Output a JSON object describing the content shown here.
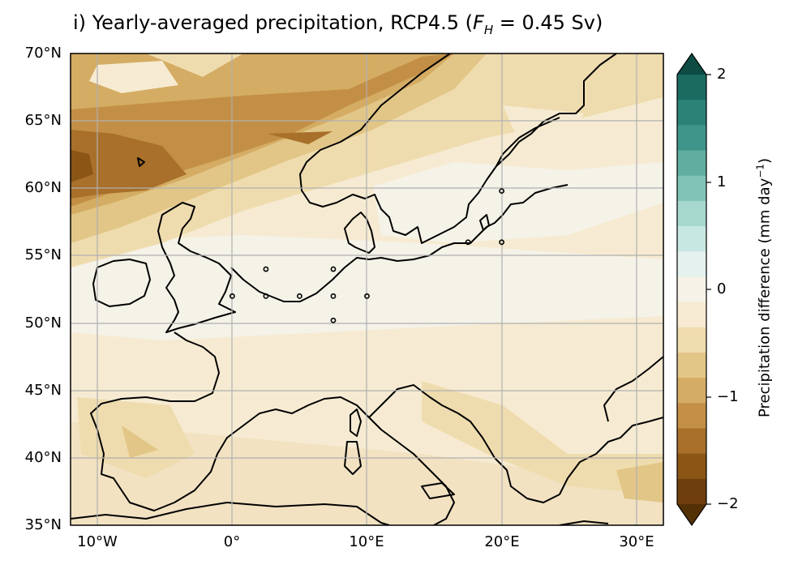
{
  "map": {
    "title_prefix": "i) Yearly-averaged precipitation, RCP4.5 (",
    "title_var": "F",
    "title_sub": "H",
    "title_suffix": " = 0.45 Sv)",
    "lat_labels": [
      "70°N",
      "65°N",
      "60°N",
      "55°N",
      "50°N",
      "45°N",
      "40°N",
      "35°N"
    ],
    "lon_labels": [
      "10°W",
      "0°",
      "10°E",
      "20°E",
      "30°E"
    ],
    "extent": {
      "lon_min": -12,
      "lon_max": 32,
      "lat_min": 35,
      "lat_max": 70
    },
    "significance_markers": [
      [
        0,
        52
      ],
      [
        2.5,
        52
      ],
      [
        2.5,
        54
      ],
      [
        5,
        52
      ],
      [
        7.5,
        52
      ],
      [
        7.5,
        54
      ],
      [
        7.5,
        50.2
      ],
      [
        10,
        52
      ],
      [
        17.5,
        56
      ],
      [
        20,
        56
      ],
      [
        20,
        59.8
      ]
    ],
    "colorbar": {
      "label_main": "Precipitation difference (mm day",
      "label_sup": "−1",
      "label_end": ")",
      "ticks": [
        "2",
        "1",
        "0",
        "−1",
        "−2"
      ],
      "colors_top_to_bottom": [
        "#0d4b43",
        "#1b6b61",
        "#2b8277",
        "#3f958a",
        "#5fae9f",
        "#80c4b8",
        "#a6d8ce",
        "#c7e8e2",
        "#e4f1ee",
        "#f5f2e8",
        "#f6ebd2",
        "#efdcae",
        "#e2c687",
        "#d4ac63",
        "#c38f46",
        "#a8702a",
        "#8b5516",
        "#6e3e0c",
        "#543005"
      ]
    },
    "colors": {
      "land_line": "#000000",
      "grid": "#b0b0b0"
    }
  }
}
